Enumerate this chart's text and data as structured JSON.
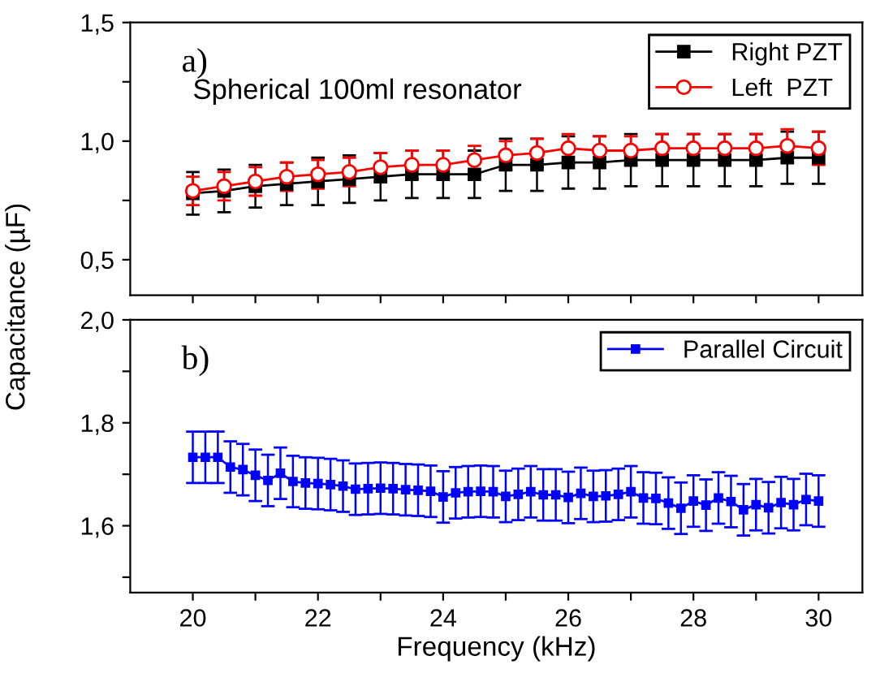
{
  "chart_data": [
    {
      "type": "line",
      "ylabel": "Capacitance (µF)",
      "annotations": [
        "a)",
        "Spherical 100ml resonator"
      ],
      "x": [
        20,
        20.5,
        21,
        21.5,
        22,
        22.5,
        23,
        23.5,
        24,
        24.5,
        25,
        25.5,
        26,
        26.5,
        27,
        27.5,
        28,
        28.5,
        29,
        29.5,
        30
      ],
      "series": [
        {
          "name": "Right PZT",
          "color": "#000000",
          "marker": "square",
          "values": [
            0.78,
            0.79,
            0.81,
            0.82,
            0.83,
            0.84,
            0.85,
            0.86,
            0.86,
            0.86,
            0.9,
            0.9,
            0.91,
            0.91,
            0.92,
            0.92,
            0.92,
            0.92,
            0.92,
            0.93,
            0.93
          ],
          "errors": [
            0.09,
            0.09,
            0.09,
            0.09,
            0.1,
            0.1,
            0.1,
            0.1,
            0.1,
            0.1,
            0.11,
            0.11,
            0.11,
            0.11,
            0.11,
            0.11,
            0.11,
            0.11,
            0.11,
            0.11,
            0.11
          ]
        },
        {
          "name": "Left  PZT",
          "color": "#ff0000",
          "marker": "circle",
          "values": [
            0.79,
            0.81,
            0.83,
            0.85,
            0.86,
            0.87,
            0.89,
            0.9,
            0.9,
            0.92,
            0.94,
            0.95,
            0.97,
            0.96,
            0.96,
            0.97,
            0.97,
            0.97,
            0.97,
            0.98,
            0.97
          ],
          "errors": [
            0.06,
            0.06,
            0.06,
            0.06,
            0.06,
            0.06,
            0.06,
            0.06,
            0.06,
            0.06,
            0.06,
            0.06,
            0.06,
            0.06,
            0.06,
            0.06,
            0.06,
            0.06,
            0.06,
            0.07,
            0.07
          ]
        }
      ],
      "xlim": [
        19,
        30.7
      ],
      "xticks": [
        {
          "value": 20,
          "label": null
        },
        {
          "value": 21,
          "label": null
        },
        {
          "value": 22,
          "label": null
        },
        {
          "value": 23,
          "label": null
        },
        {
          "value": 24,
          "label": null
        },
        {
          "value": 25,
          "label": null
        },
        {
          "value": 26,
          "label": null
        },
        {
          "value": 27,
          "label": null
        },
        {
          "value": 28,
          "label": null
        },
        {
          "value": 29,
          "label": null
        },
        {
          "value": 30,
          "label": null
        }
      ],
      "ylim": [
        0.35,
        1.5
      ],
      "yticks": [
        {
          "value": 0.5,
          "label": "0,5"
        },
        {
          "value": 0.75,
          "label": null
        },
        {
          "value": 1.0,
          "label": "1,0"
        },
        {
          "value": 1.25,
          "label": null
        },
        {
          "value": 1.5,
          "label": "1,5"
        }
      ],
      "tick_labels": "y",
      "legend": "top right",
      "grid": false,
      "line_style": "solid"
    },
    {
      "type": "line",
      "xlabel": "Frequency (kHz)",
      "annotations": [
        "b)"
      ],
      "x": [
        20,
        20.2,
        20.4,
        20.6,
        20.8,
        21,
        21.2,
        21.4,
        21.6,
        21.8,
        22,
        22.2,
        22.4,
        22.6,
        22.8,
        23,
        23.2,
        23.4,
        23.6,
        23.8,
        24,
        24.2,
        24.4,
        24.6,
        24.8,
        25,
        25.2,
        25.4,
        25.6,
        25.8,
        26,
        26.2,
        26.4,
        26.6,
        26.8,
        27,
        27.2,
        27.4,
        27.6,
        27.8,
        28,
        28.2,
        28.4,
        28.6,
        28.8,
        29,
        29.2,
        29.4,
        29.6,
        29.8,
        30
      ],
      "series": [
        {
          "name": "Parallel Circuit",
          "color": "#0000ff",
          "marker": "square",
          "values": [
            1.733,
            1.733,
            1.733,
            1.714,
            1.709,
            1.698,
            1.688,
            1.702,
            1.686,
            1.683,
            1.682,
            1.68,
            1.677,
            1.671,
            1.672,
            1.673,
            1.672,
            1.67,
            1.669,
            1.667,
            1.656,
            1.664,
            1.666,
            1.667,
            1.666,
            1.657,
            1.661,
            1.666,
            1.66,
            1.66,
            1.655,
            1.663,
            1.657,
            1.658,
            1.661,
            1.666,
            1.654,
            1.653,
            1.644,
            1.634,
            1.648,
            1.64,
            1.654,
            1.647,
            1.631,
            1.641,
            1.635,
            1.645,
            1.641,
            1.651,
            1.648
          ],
          "errors": [
            0.05,
            0.05,
            0.05,
            0.05,
            0.05,
            0.05,
            0.05,
            0.05,
            0.05,
            0.05,
            0.05,
            0.05,
            0.05,
            0.05,
            0.05,
            0.05,
            0.05,
            0.05,
            0.05,
            0.05,
            0.05,
            0.05,
            0.05,
            0.05,
            0.05,
            0.05,
            0.05,
            0.05,
            0.05,
            0.05,
            0.05,
            0.05,
            0.05,
            0.05,
            0.05,
            0.05,
            0.05,
            0.05,
            0.05,
            0.05,
            0.05,
            0.05,
            0.05,
            0.05,
            0.05,
            0.05,
            0.05,
            0.05,
            0.05,
            0.05,
            0.05
          ]
        }
      ],
      "xlim": [
        19,
        30.7
      ],
      "xticks": [
        20,
        {
          "value": 21,
          "label": null
        },
        22,
        {
          "value": 23,
          "label": null
        },
        24,
        {
          "value": 25,
          "label": null
        },
        26,
        {
          "value": 27,
          "label": null
        },
        28,
        {
          "value": 29,
          "label": null
        },
        30
      ],
      "ylim": [
        1.47,
        2.0
      ],
      "yticks": [
        {
          "value": 1.5,
          "label": null
        },
        {
          "value": 1.6,
          "label": "1,6"
        },
        {
          "value": 1.7,
          "label": null
        },
        {
          "value": 1.8,
          "label": "1,8"
        },
        {
          "value": 1.9,
          "label": null
        },
        {
          "value": 2.0,
          "label": "2,0"
        }
      ],
      "legend": "top right",
      "grid": false,
      "line_style": "solid"
    }
  ]
}
